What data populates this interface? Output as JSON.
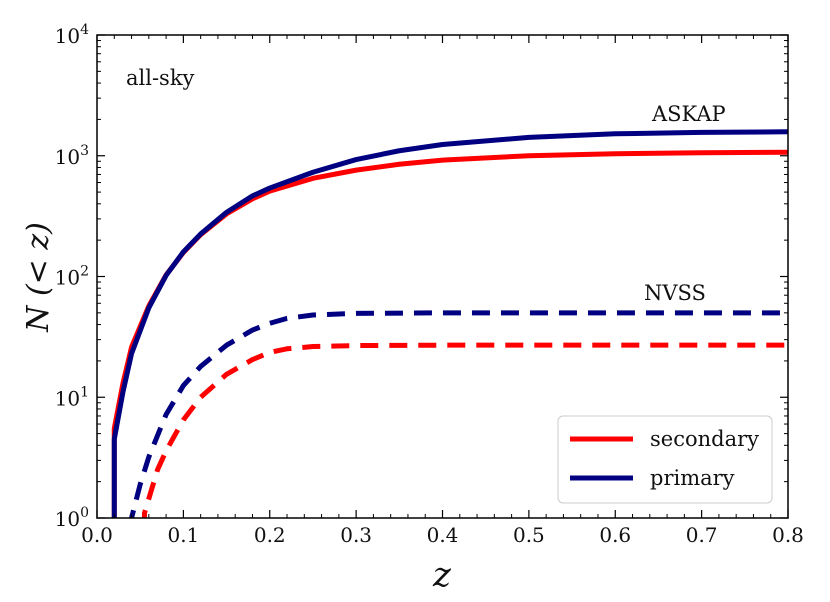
{
  "chart_data": {
    "type": "line",
    "title": "",
    "xlabel": "z",
    "ylabel": "N (< z)",
    "xlim": [
      0.0,
      0.8
    ],
    "ylim": [
      1,
      10000
    ],
    "yscale": "log",
    "x_ticks": [
      "0.0",
      "0.1",
      "0.2",
      "0.3",
      "0.4",
      "0.5",
      "0.6",
      "0.7",
      "0.8"
    ],
    "y_ticks": [
      {
        "base": "10",
        "exp": "0",
        "value": 1
      },
      {
        "base": "10",
        "exp": "1",
        "value": 10
      },
      {
        "base": "10",
        "exp": "2",
        "value": 100
      },
      {
        "base": "10",
        "exp": "3",
        "value": 1000
      },
      {
        "base": "10",
        "exp": "4",
        "value": 10000
      }
    ],
    "annotations": [
      {
        "text": "all-sky",
        "placement": "top-left"
      },
      {
        "text": "ASKAP",
        "placement": "above ASKAP curves"
      },
      {
        "text": "NVSS",
        "placement": "above NVSS curves"
      }
    ],
    "legend": {
      "placement": "bottom-right",
      "entries": [
        {
          "label": "secondary",
          "color": "#ff0000"
        },
        {
          "label": "primary",
          "color": "#000080"
        }
      ]
    },
    "series": [
      {
        "name": "ASKAP secondary",
        "survey": "ASKAP",
        "population": "secondary",
        "color": "#ff0000",
        "style": "solid",
        "x": [
          0.02,
          0.03,
          0.04,
          0.06,
          0.08,
          0.1,
          0.12,
          0.15,
          0.18,
          0.2,
          0.25,
          0.3,
          0.35,
          0.4,
          0.5,
          0.6,
          0.7,
          0.8
        ],
        "y": [
          5.5,
          13,
          26,
          57,
          103,
          158,
          222,
          330,
          440,
          510,
          650,
          760,
          850,
          920,
          1000,
          1040,
          1060,
          1070
        ]
      },
      {
        "name": "ASKAP primary",
        "survey": "ASKAP",
        "population": "primary",
        "color": "#000080",
        "style": "solid",
        "x": [
          0.02,
          0.03,
          0.04,
          0.06,
          0.08,
          0.1,
          0.12,
          0.15,
          0.18,
          0.2,
          0.25,
          0.3,
          0.35,
          0.4,
          0.5,
          0.6,
          0.7,
          0.8
        ],
        "y": [
          4.5,
          11,
          23,
          55,
          102,
          160,
          225,
          340,
          465,
          540,
          730,
          930,
          1100,
          1240,
          1420,
          1520,
          1560,
          1580
        ]
      },
      {
        "name": "NVSS secondary",
        "survey": "NVSS",
        "population": "secondary",
        "color": "#ff0000",
        "style": "dashed",
        "x": [
          0.055,
          0.07,
          0.08,
          0.1,
          0.12,
          0.15,
          0.18,
          0.2,
          0.22,
          0.25,
          0.3,
          0.4,
          0.5,
          0.6,
          0.7,
          0.8
        ],
        "y": [
          1.1,
          2.5,
          3.6,
          6.5,
          10,
          15.5,
          20.5,
          23.5,
          25.2,
          26.3,
          26.8,
          27,
          27,
          27,
          27,
          27
        ]
      },
      {
        "name": "NVSS primary",
        "survey": "NVSS",
        "population": "primary",
        "color": "#000080",
        "style": "dashed",
        "x": [
          0.04,
          0.05,
          0.06,
          0.08,
          0.1,
          0.12,
          0.15,
          0.18,
          0.2,
          0.22,
          0.25,
          0.3,
          0.4,
          0.5,
          0.6,
          0.7,
          0.8
        ],
        "y": [
          1.0,
          1.9,
          3.2,
          7.2,
          12.5,
          18,
          27,
          36,
          41,
          45,
          48,
          49.5,
          50,
          50,
          50,
          50,
          50
        ]
      }
    ]
  }
}
